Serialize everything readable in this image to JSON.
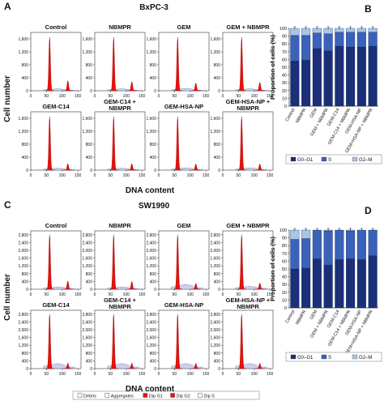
{
  "panels": [
    {
      "label": "A",
      "title": "BxPC-3",
      "ylabel": "Cell number",
      "xlabel": "DNA content",
      "yticks": [
        "0",
        "400",
        "800",
        "1,200",
        "1,600"
      ],
      "ymax": 1800,
      "xticks": [
        "0",
        "50",
        "100",
        "150"
      ],
      "histograms": [
        {
          "title": "Control",
          "g1_peak": 1650,
          "g2_peak": 310,
          "s_level": 60
        },
        {
          "title": "NBMPR",
          "g1_peak": 1650,
          "g2_peak": 280,
          "s_level": 60
        },
        {
          "title": "GEM",
          "g1_peak": 1650,
          "g2_peak": 240,
          "s_level": 70
        },
        {
          "title": "GEM + NBMPR",
          "g1_peak": 1650,
          "g2_peak": 260,
          "s_level": 60
        },
        {
          "title": "GEM-C14",
          "g1_peak": 1650,
          "g2_peak": 200,
          "s_level": 60
        },
        {
          "title": "GEM-C14 + NBMPR",
          "g1_peak": 1650,
          "g2_peak": 200,
          "s_level": 60
        },
        {
          "title": "GEM-HSA-NP",
          "g1_peak": 1650,
          "g2_peak": 190,
          "s_level": 70
        },
        {
          "title": "GEM-HSA-NP + NBMPR",
          "g1_peak": 1650,
          "g2_peak": 190,
          "s_level": 70
        }
      ]
    },
    {
      "label": "C",
      "title": "SW1990",
      "ylabel": "Cell number",
      "xlabel": "DNA content",
      "yticks": [
        "0",
        "400",
        "800",
        "1,200",
        "1,600",
        "2,000",
        "2,400",
        "2,800"
      ],
      "ymax": 3000,
      "xticks": [
        "0",
        "50",
        "100",
        "150"
      ],
      "histograms": [
        {
          "title": "Control",
          "g1_peak": 2800,
          "g2_peak": 420,
          "s_level": 120
        },
        {
          "title": "NBMPR",
          "g1_peak": 2800,
          "g2_peak": 400,
          "s_level": 120
        },
        {
          "title": "GEM",
          "g1_peak": 2800,
          "g2_peak": 300,
          "s_level": 250
        },
        {
          "title": "GEM + NBMPR",
          "g1_peak": 2800,
          "g2_peak": 320,
          "s_level": 150
        },
        {
          "title": "GEM-C14",
          "g1_peak": 2800,
          "g2_peak": 280,
          "s_level": 260
        },
        {
          "title": "GEM-C14 + NBMPR",
          "g1_peak": 2800,
          "g2_peak": 280,
          "s_level": 260
        },
        {
          "title": "GEM-HSA-NP",
          "g1_peak": 2800,
          "g2_peak": 270,
          "s_level": 260
        },
        {
          "title": "GEM-HSA-NP + NBMPR",
          "g1_peak": 2800,
          "g2_peak": 270,
          "s_level": 260
        }
      ]
    }
  ],
  "legend_hist": {
    "items": [
      {
        "label": "Debris",
        "color": "#ffffff"
      },
      {
        "label": "Aggregates",
        "color": "#ffffff"
      },
      {
        "label": "Dip G1",
        "color": "#e8120c"
      },
      {
        "label": "Dip G2",
        "color": "#e8120c"
      },
      {
        "label": "Dip S",
        "color": "#ffffff"
      }
    ]
  },
  "chart_data": [
    {
      "type": "bar",
      "panel": "B",
      "stacked": true,
      "ylabel": "Proportion of cells (%)",
      "ylim": [
        0,
        100
      ],
      "yticks": [
        "0",
        "10",
        "20",
        "30",
        "40",
        "50",
        "60",
        "70",
        "80",
        "90",
        "100"
      ],
      "categories": [
        "Control",
        "NBMPR",
        "GEM",
        "GEM + NBMPR",
        "GEM-C14",
        "GEM-C14 + NBMPR",
        "GEM-HSA-NP",
        "GEM+HSA-NP + NBMPR"
      ],
      "series": [
        {
          "name": "G0–G1",
          "color": "#1b2f78",
          "values": [
            58,
            59,
            74,
            71,
            77,
            76,
            76,
            77
          ]
        },
        {
          "name": "S",
          "color": "#3a62b8",
          "values": [
            33,
            32,
            20,
            22,
            18,
            19,
            19,
            18
          ]
        },
        {
          "name": "G2–M",
          "color": "#a9c6ea",
          "values": [
            9,
            9,
            6,
            7,
            5,
            5,
            5,
            5
          ]
        }
      ],
      "legend_position": "bottom"
    },
    {
      "type": "bar",
      "panel": "D",
      "stacked": true,
      "ylabel": "Proportion of cells (%)",
      "ylim": [
        0,
        100
      ],
      "yticks": [
        "0",
        "10",
        "20",
        "30",
        "40",
        "50",
        "60",
        "70",
        "80",
        "90",
        "100"
      ],
      "categories": [
        "Control",
        "NBMPR",
        "GEM",
        "GEM + NBMPR",
        "GEM-C14",
        "GEM-C14 + NBMPR",
        "GEM-HSA-NP",
        "GEM+HSA-NP + NBMPR"
      ],
      "series": [
        {
          "name": "G0–G1",
          "color": "#1b2f78",
          "values": [
            50,
            51,
            63,
            55,
            62,
            63,
            62,
            67
          ]
        },
        {
          "name": "S",
          "color": "#3a62b8",
          "values": [
            38,
            38,
            37,
            44,
            38,
            36,
            38,
            33
          ]
        },
        {
          "name": "G2–M",
          "color": "#a9c6ea",
          "values": [
            12,
            11,
            0,
            1,
            0,
            1,
            0,
            0
          ]
        }
      ],
      "legend_position": "bottom"
    }
  ],
  "panel_labels": {
    "b": "B",
    "d": "D"
  }
}
